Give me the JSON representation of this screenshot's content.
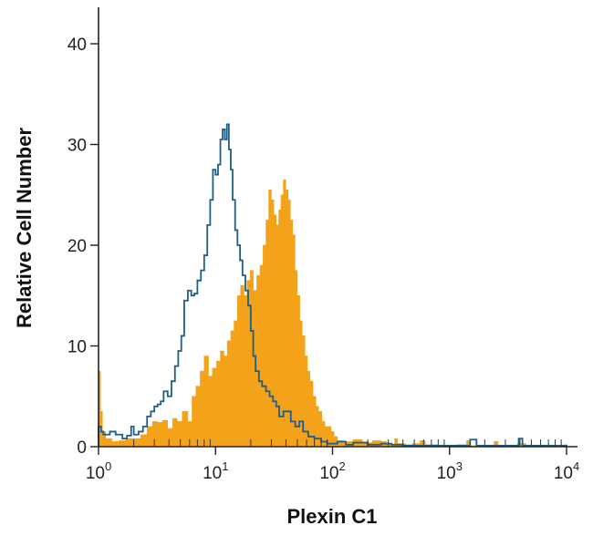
{
  "chart_data": {
    "type": "area",
    "title": "",
    "xlabel": "Plexin C1",
    "ylabel": "Relative Cell Number",
    "x_scale": "log",
    "xlim": [
      1,
      10000
    ],
    "ylim": [
      0,
      45
    ],
    "x_ticks": [
      {
        "value": 1,
        "base": "10",
        "exp": "0"
      },
      {
        "value": 10,
        "base": "10",
        "exp": "1"
      },
      {
        "value": 100,
        "base": "10",
        "exp": "2"
      },
      {
        "value": 1000,
        "base": "10",
        "exp": "3"
      },
      {
        "value": 10000,
        "base": "10",
        "exp": "4"
      }
    ],
    "y_ticks": [
      0,
      10,
      20,
      30,
      40
    ],
    "grid": false,
    "series": [
      {
        "style": "filled",
        "color": "#f5a21b",
        "points": [
          [
            1.0,
            7.5
          ],
          [
            1.04,
            3.5
          ],
          [
            1.08,
            1.5
          ],
          [
            1.15,
            0.8
          ],
          [
            1.3,
            0.5
          ],
          [
            1.5,
            0.6
          ],
          [
            1.7,
            0.8
          ],
          [
            2.0,
            0.8
          ],
          [
            2.3,
            1.2
          ],
          [
            2.6,
            2.0
          ],
          [
            2.9,
            2.5
          ],
          [
            3.2,
            2.4
          ],
          [
            3.5,
            2.6
          ],
          [
            3.9,
            1.8
          ],
          [
            4.3,
            2.8
          ],
          [
            4.7,
            2.5
          ],
          [
            5.2,
            3.5
          ],
          [
            5.8,
            2.5
          ],
          [
            6.3,
            5.0
          ],
          [
            6.8,
            6.0
          ],
          [
            7.4,
            7.5
          ],
          [
            8.0,
            9.0
          ],
          [
            8.7,
            7.0
          ],
          [
            9.4,
            7.8
          ],
          [
            10.2,
            8.5
          ],
          [
            11.0,
            9.5
          ],
          [
            11.8,
            9.0
          ],
          [
            12.6,
            10.5
          ],
          [
            13.5,
            11.5
          ],
          [
            14.4,
            12.5
          ],
          [
            15.4,
            15.0
          ],
          [
            16.4,
            16.0
          ],
          [
            17.5,
            15.0
          ],
          [
            18.6,
            16.5
          ],
          [
            19.8,
            17.5
          ],
          [
            21.0,
            15.5
          ],
          [
            22.5,
            17.0
          ],
          [
            24.0,
            18.0
          ],
          [
            25.5,
            20.0
          ],
          [
            27.0,
            22.5
          ],
          [
            28.5,
            25.5
          ],
          [
            30.0,
            24.5
          ],
          [
            31.5,
            23.0
          ],
          [
            33.0,
            22.0
          ],
          [
            34.7,
            23.5
          ],
          [
            36.3,
            25.0
          ],
          [
            38.0,
            26.5
          ],
          [
            39.8,
            25.5
          ],
          [
            41.7,
            24.5
          ],
          [
            43.6,
            22.5
          ],
          [
            45.6,
            21.0
          ],
          [
            47.8,
            17.5
          ],
          [
            50.0,
            15.0
          ],
          [
            52.5,
            12.5
          ],
          [
            55.0,
            11.0
          ],
          [
            58.0,
            9.0
          ],
          [
            61.0,
            7.5
          ],
          [
            64.0,
            6.5
          ],
          [
            68.0,
            5.0
          ],
          [
            72.0,
            4.0
          ],
          [
            76.0,
            3.5
          ],
          [
            81.0,
            2.5
          ],
          [
            86.0,
            2.0
          ],
          [
            91.0,
            2.0
          ],
          [
            97.0,
            1.5
          ],
          [
            103.0,
            1.0
          ],
          [
            110.0,
            0.6
          ],
          [
            125.0,
            0.5
          ],
          [
            150.0,
            0.7
          ],
          [
            180.0,
            0.4
          ],
          [
            220.0,
            0.6
          ],
          [
            260.0,
            0.5
          ],
          [
            290.0,
            0.3
          ],
          [
            320.0,
            0.2
          ],
          [
            340.0,
            0.8
          ],
          [
            360.0,
            0.3
          ],
          [
            420.0,
            0.2
          ],
          [
            480.0,
            0.3
          ],
          [
            560.0,
            0.6
          ],
          [
            620.0,
            0.2
          ],
          [
            700.0,
            0.2
          ],
          [
            800.0,
            0.1
          ],
          [
            950.0,
            0.1
          ],
          [
            1150.0,
            0.2
          ],
          [
            1400.0,
            0.6
          ],
          [
            1500.0,
            0.1
          ],
          [
            1800.0,
            0.1
          ],
          [
            2200.0,
            0.1
          ],
          [
            2400.0,
            0.5
          ],
          [
            2600.0,
            0.1
          ],
          [
            3200.0,
            0.1
          ],
          [
            3800.0,
            0.3
          ],
          [
            4500.0,
            0.1
          ],
          [
            5500.0,
            0.1
          ],
          [
            7000.0,
            0.1
          ],
          [
            8500.0,
            0.1
          ],
          [
            9500.0,
            0.2
          ],
          [
            10000.0,
            0.0
          ]
        ]
      },
      {
        "style": "outline",
        "color": "#1f5f86",
        "points": [
          [
            1.0,
            2.0
          ],
          [
            1.05,
            1.5
          ],
          [
            1.1,
            1.2
          ],
          [
            1.25,
            1.5
          ],
          [
            1.4,
            1.2
          ],
          [
            1.6,
            0.8
          ],
          [
            1.75,
            1.1
          ],
          [
            1.9,
            2.0
          ],
          [
            2.0,
            1.2
          ],
          [
            2.2,
            1.5
          ],
          [
            2.4,
            2.0
          ],
          [
            2.6,
            3.0
          ],
          [
            2.8,
            3.5
          ],
          [
            3.0,
            4.0
          ],
          [
            3.2,
            4.2
          ],
          [
            3.4,
            4.5
          ],
          [
            3.6,
            5.5
          ],
          [
            3.9,
            5.0
          ],
          [
            4.2,
            6.5
          ],
          [
            4.5,
            8.0
          ],
          [
            4.8,
            9.5
          ],
          [
            5.1,
            11.0
          ],
          [
            5.4,
            14.5
          ],
          [
            5.8,
            15.5
          ],
          [
            6.2,
            15.0
          ],
          [
            6.6,
            15.2
          ],
          [
            7.0,
            16.5
          ],
          [
            7.5,
            17.5
          ],
          [
            8.0,
            19.0
          ],
          [
            8.5,
            22.0
          ],
          [
            9.0,
            24.5
          ],
          [
            9.5,
            27.5
          ],
          [
            10.0,
            27.0
          ],
          [
            10.5,
            28.0
          ],
          [
            11.0,
            30.5
          ],
          [
            11.5,
            31.5
          ],
          [
            12.0,
            30.5
          ],
          [
            12.5,
            32.0
          ],
          [
            13.0,
            29.5
          ],
          [
            13.5,
            27.5
          ],
          [
            14.0,
            24.5
          ],
          [
            14.7,
            21.5
          ],
          [
            15.4,
            20.0
          ],
          [
            16.2,
            18.5
          ],
          [
            17.0,
            17.0
          ],
          [
            18.0,
            15.5
          ],
          [
            19.0,
            14.0
          ],
          [
            20.0,
            11.5
          ],
          [
            21.0,
            9.0
          ],
          [
            22.0,
            7.5
          ],
          [
            23.5,
            6.5
          ],
          [
            25.0,
            6.0
          ],
          [
            27.0,
            5.5
          ],
          [
            29.0,
            5.0
          ],
          [
            31.0,
            4.5
          ],
          [
            33.0,
            4.0
          ],
          [
            35.0,
            3.0
          ],
          [
            38.0,
            3.5
          ],
          [
            41.0,
            3.5
          ],
          [
            44.0,
            2.5
          ],
          [
            48.0,
            2.0
          ],
          [
            52.0,
            2.5
          ],
          [
            56.0,
            1.5
          ],
          [
            62.0,
            1.0
          ],
          [
            70.0,
            0.8
          ],
          [
            80.0,
            0.5
          ],
          [
            90.0,
            0.3
          ],
          [
            110.0,
            0.5
          ],
          [
            130.0,
            0.2
          ],
          [
            150.0,
            0.4
          ],
          [
            200.0,
            0.2
          ],
          [
            260.0,
            0.3
          ],
          [
            320.0,
            0.2
          ],
          [
            400.0,
            0.1
          ],
          [
            600.0,
            0.1
          ],
          [
            900.0,
            0.1
          ],
          [
            1300.0,
            0.1
          ],
          [
            1500.0,
            0.7
          ],
          [
            1700.0,
            0.1
          ],
          [
            2500.0,
            0.1
          ],
          [
            3500.0,
            0.1
          ],
          [
            3900.0,
            0.8
          ],
          [
            4200.0,
            0.1
          ],
          [
            6000.0,
            0.1
          ],
          [
            10000.0,
            0.0
          ]
        ]
      }
    ]
  }
}
